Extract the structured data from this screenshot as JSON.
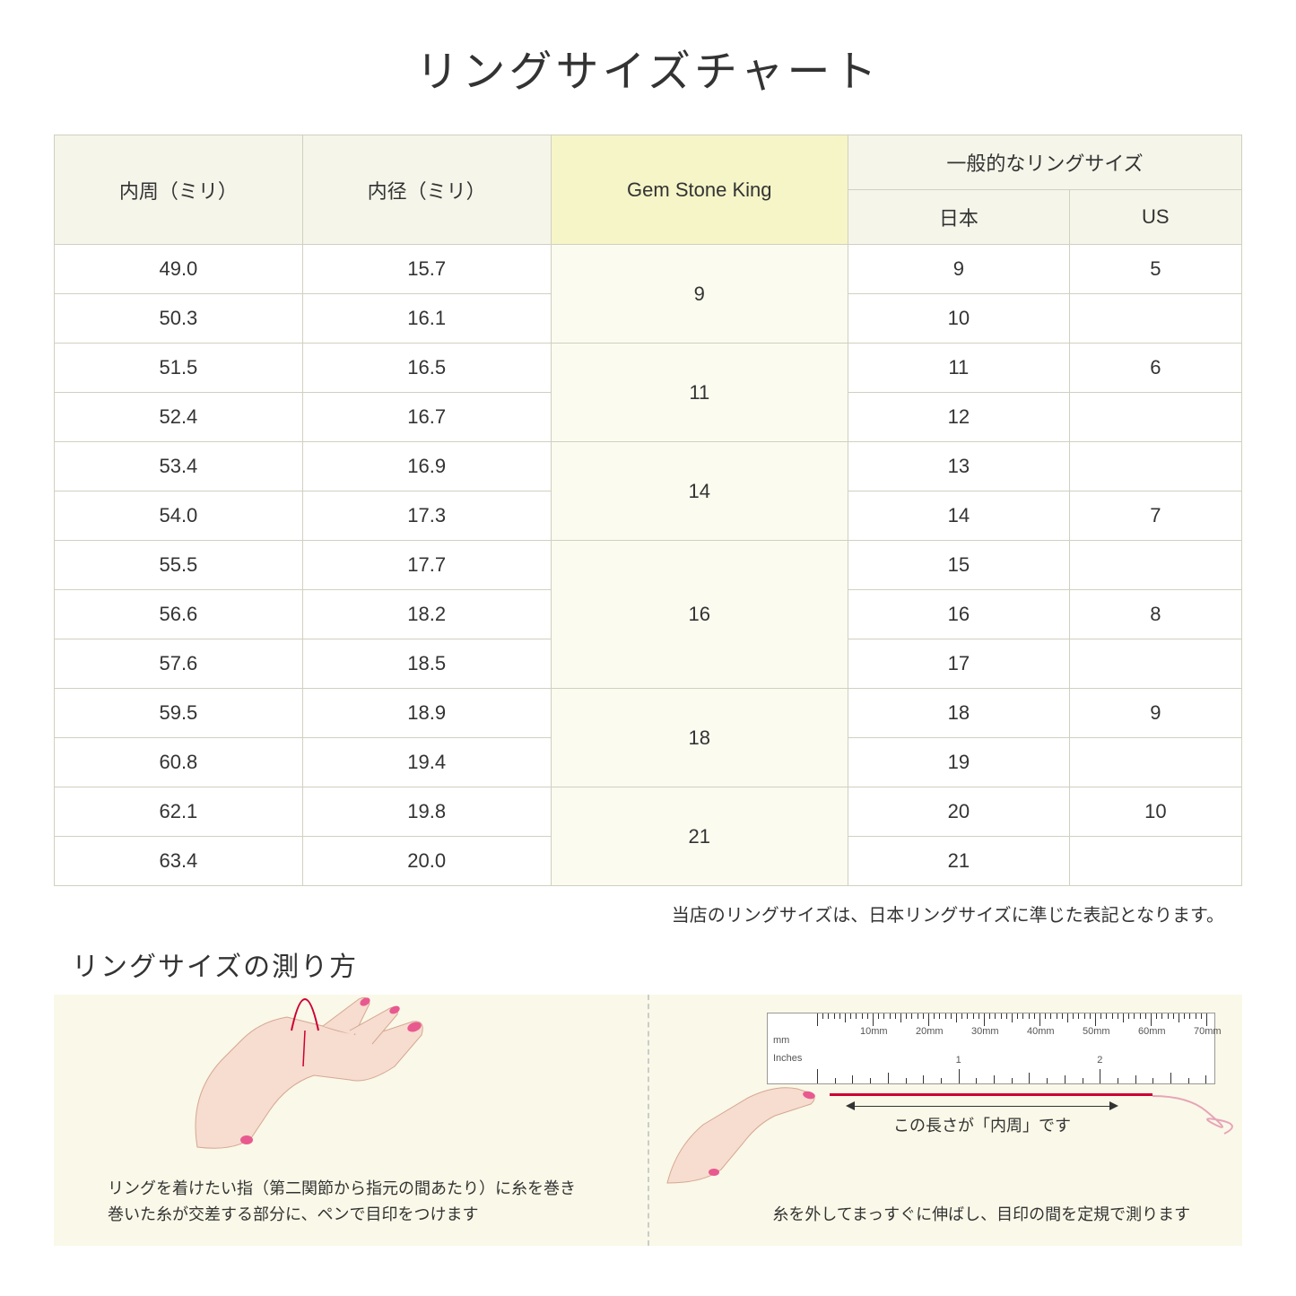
{
  "title": "リングサイズチャート",
  "headers": {
    "circumference": "内周（ミリ）",
    "diameter": "内径（ミリ）",
    "gsk": "Gem Stone King",
    "general": "一般的なリングサイズ",
    "japan": "日本",
    "us": "US"
  },
  "rows": [
    {
      "circ": "49.0",
      "diam": "15.7",
      "jp": "9",
      "us": "5"
    },
    {
      "circ": "50.3",
      "diam": "16.1",
      "jp": "10",
      "us": ""
    },
    {
      "circ": "51.5",
      "diam": "16.5",
      "jp": "11",
      "us": "6"
    },
    {
      "circ": "52.4",
      "diam": "16.7",
      "jp": "12",
      "us": ""
    },
    {
      "circ": "53.4",
      "diam": "16.9",
      "jp": "13",
      "us": ""
    },
    {
      "circ": "54.0",
      "diam": "17.3",
      "jp": "14",
      "us": "7"
    },
    {
      "circ": "55.5",
      "diam": "17.7",
      "jp": "15",
      "us": ""
    },
    {
      "circ": "56.6",
      "diam": "18.2",
      "jp": "16",
      "us": "8"
    },
    {
      "circ": "57.6",
      "diam": "18.5",
      "jp": "17",
      "us": ""
    },
    {
      "circ": "59.5",
      "diam": "18.9",
      "jp": "18",
      "us": "9"
    },
    {
      "circ": "60.8",
      "diam": "19.4",
      "jp": "19",
      "us": ""
    },
    {
      "circ": "62.1",
      "diam": "19.8",
      "jp": "20",
      "us": "10"
    },
    {
      "circ": "63.4",
      "diam": "20.0",
      "jp": "21",
      "us": ""
    }
  ],
  "gsk_groups": [
    {
      "label": "9",
      "span": 2
    },
    {
      "label": "11",
      "span": 2
    },
    {
      "label": "14",
      "span": 2
    },
    {
      "label": "16",
      "span": 3
    },
    {
      "label": "18",
      "span": 2
    },
    {
      "label": "21",
      "span": 2
    }
  ],
  "note": "当店のリングサイズは、日本リングサイズに準じた表記となります。",
  "howto": {
    "title": "リングサイズの測り方",
    "step1": "リングを着けたい指（第二関節から指元の間あたり）に糸を巻き\n巻いた糸が交差する部分に、ペンで目印をつけます",
    "step2": "糸を外してまっすぐに伸ばし、目印の間を定規で測ります",
    "measure_label": "この長さが「内周」です",
    "ruler_mm": "mm",
    "ruler_inches": "Inches",
    "ruler_mm_labels": [
      "10mm",
      "20mm",
      "30mm",
      "40mm",
      "50mm",
      "60mm",
      "70mm"
    ],
    "ruler_inch_labels": [
      "1",
      "2"
    ]
  },
  "colors": {
    "header_bg": "#f5f5ea",
    "gsk_header_bg": "#f5f5c8",
    "gsk_cell_bg": "#fbfbf0",
    "border": "#d0d0c0",
    "panel_bg": "#faf8e8",
    "hand_fill": "#f7dcd0",
    "nail": "#e85a8f",
    "thread": "#cc0033"
  }
}
